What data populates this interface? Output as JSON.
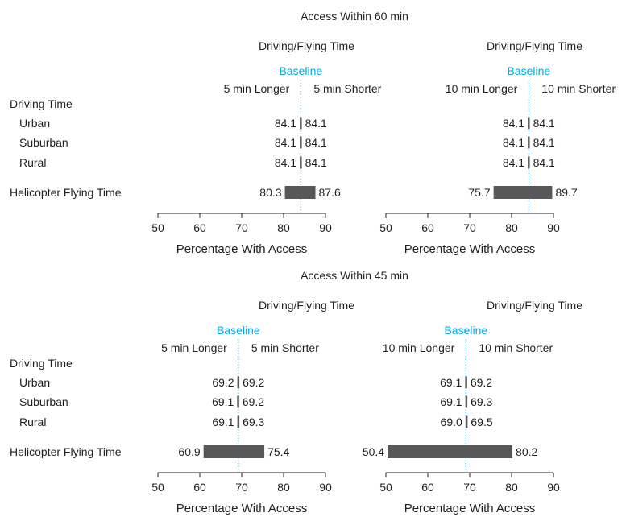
{
  "colors": {
    "bar": "#58585b",
    "baseline": "#00a9e0",
    "text": "#231f20",
    "axis": "#231f20"
  },
  "chart_data": [
    {
      "type": "bar",
      "title": "Access Within 60 min",
      "row_header": "Driving Time",
      "rows": [
        "Urban",
        "Suburban",
        "Rural",
        "Helicopter Flying Time"
      ],
      "panels": [
        {
          "subtitle": "Driving/Flying Time",
          "baseline_label": "Baseline",
          "left_label": "5 min Longer",
          "right_label": "5 min Shorter",
          "baseline": 84.1,
          "low": [
            84.1,
            84.1,
            84.1,
            80.3
          ],
          "high": [
            84.1,
            84.1,
            84.1,
            87.6
          ],
          "low_labels": [
            "84.1",
            "84.1",
            "84.1",
            "80.3"
          ],
          "high_labels": [
            "84.1",
            "84.1",
            "84.1",
            "87.6"
          ],
          "xlim": [
            50,
            90
          ],
          "xticks": [
            50,
            60,
            70,
            80,
            90
          ],
          "xtick_labels": [
            "50",
            "60",
            "70",
            "80",
            "90"
          ],
          "xlabel": "Percentage With Access"
        },
        {
          "subtitle": "Driving/Flying Time",
          "baseline_label": "Baseline",
          "left_label": "10 min Longer",
          "right_label": "10 min Shorter",
          "baseline": 84.1,
          "low": [
            84.1,
            84.1,
            84.1,
            75.7
          ],
          "high": [
            84.1,
            84.1,
            84.1,
            89.7
          ],
          "low_labels": [
            "84.1",
            "84.1",
            "84.1",
            "75.7"
          ],
          "high_labels": [
            "84.1",
            "84.1",
            "84.1",
            "89.7"
          ],
          "xlim": [
            50,
            90
          ],
          "xticks": [
            50,
            60,
            70,
            80,
            90
          ],
          "xtick_labels": [
            "50",
            "60",
            "70",
            "80",
            "90"
          ],
          "xlabel": "Percentage With Access"
        }
      ]
    },
    {
      "type": "bar",
      "title": "Access Within 45 min",
      "row_header": "Driving Time",
      "rows": [
        "Urban",
        "Suburban",
        "Rural",
        "Helicopter Flying Time"
      ],
      "panels": [
        {
          "subtitle": "Driving/Flying Time",
          "baseline_label": "Baseline",
          "left_label": "5 min Longer",
          "right_label": "5 min Shorter",
          "baseline": 69.2,
          "low": [
            69.2,
            69.1,
            69.1,
            60.9
          ],
          "high": [
            69.2,
            69.2,
            69.3,
            75.4
          ],
          "low_labels": [
            "69.2",
            "69.1",
            "69.1",
            "60.9"
          ],
          "high_labels": [
            "69.2",
            "69.2",
            "69.3",
            "75.4"
          ],
          "xlim": [
            50,
            90
          ],
          "xticks": [
            50,
            60,
            70,
            80,
            90
          ],
          "xtick_labels": [
            "50",
            "60",
            "70",
            "80",
            "90"
          ],
          "xlabel": "Percentage With Access"
        },
        {
          "subtitle": "Driving/Flying Time",
          "baseline_label": "Baseline",
          "left_label": "10 min Longer",
          "right_label": "10 min Shorter",
          "baseline": 69.1,
          "low": [
            69.1,
            69.1,
            69.0,
            50.4
          ],
          "high": [
            69.2,
            69.3,
            69.5,
            80.2
          ],
          "low_labels": [
            "69.1",
            "69.1",
            "69.0",
            "50.4"
          ],
          "high_labels": [
            "69.2",
            "69.3",
            "69.5",
            "80.2"
          ],
          "xlim": [
            50,
            90
          ],
          "xticks": [
            50,
            60,
            70,
            80,
            90
          ],
          "xtick_labels": [
            "50",
            "60",
            "70",
            "80",
            "90"
          ],
          "xlabel": "Percentage With Access"
        }
      ]
    }
  ]
}
